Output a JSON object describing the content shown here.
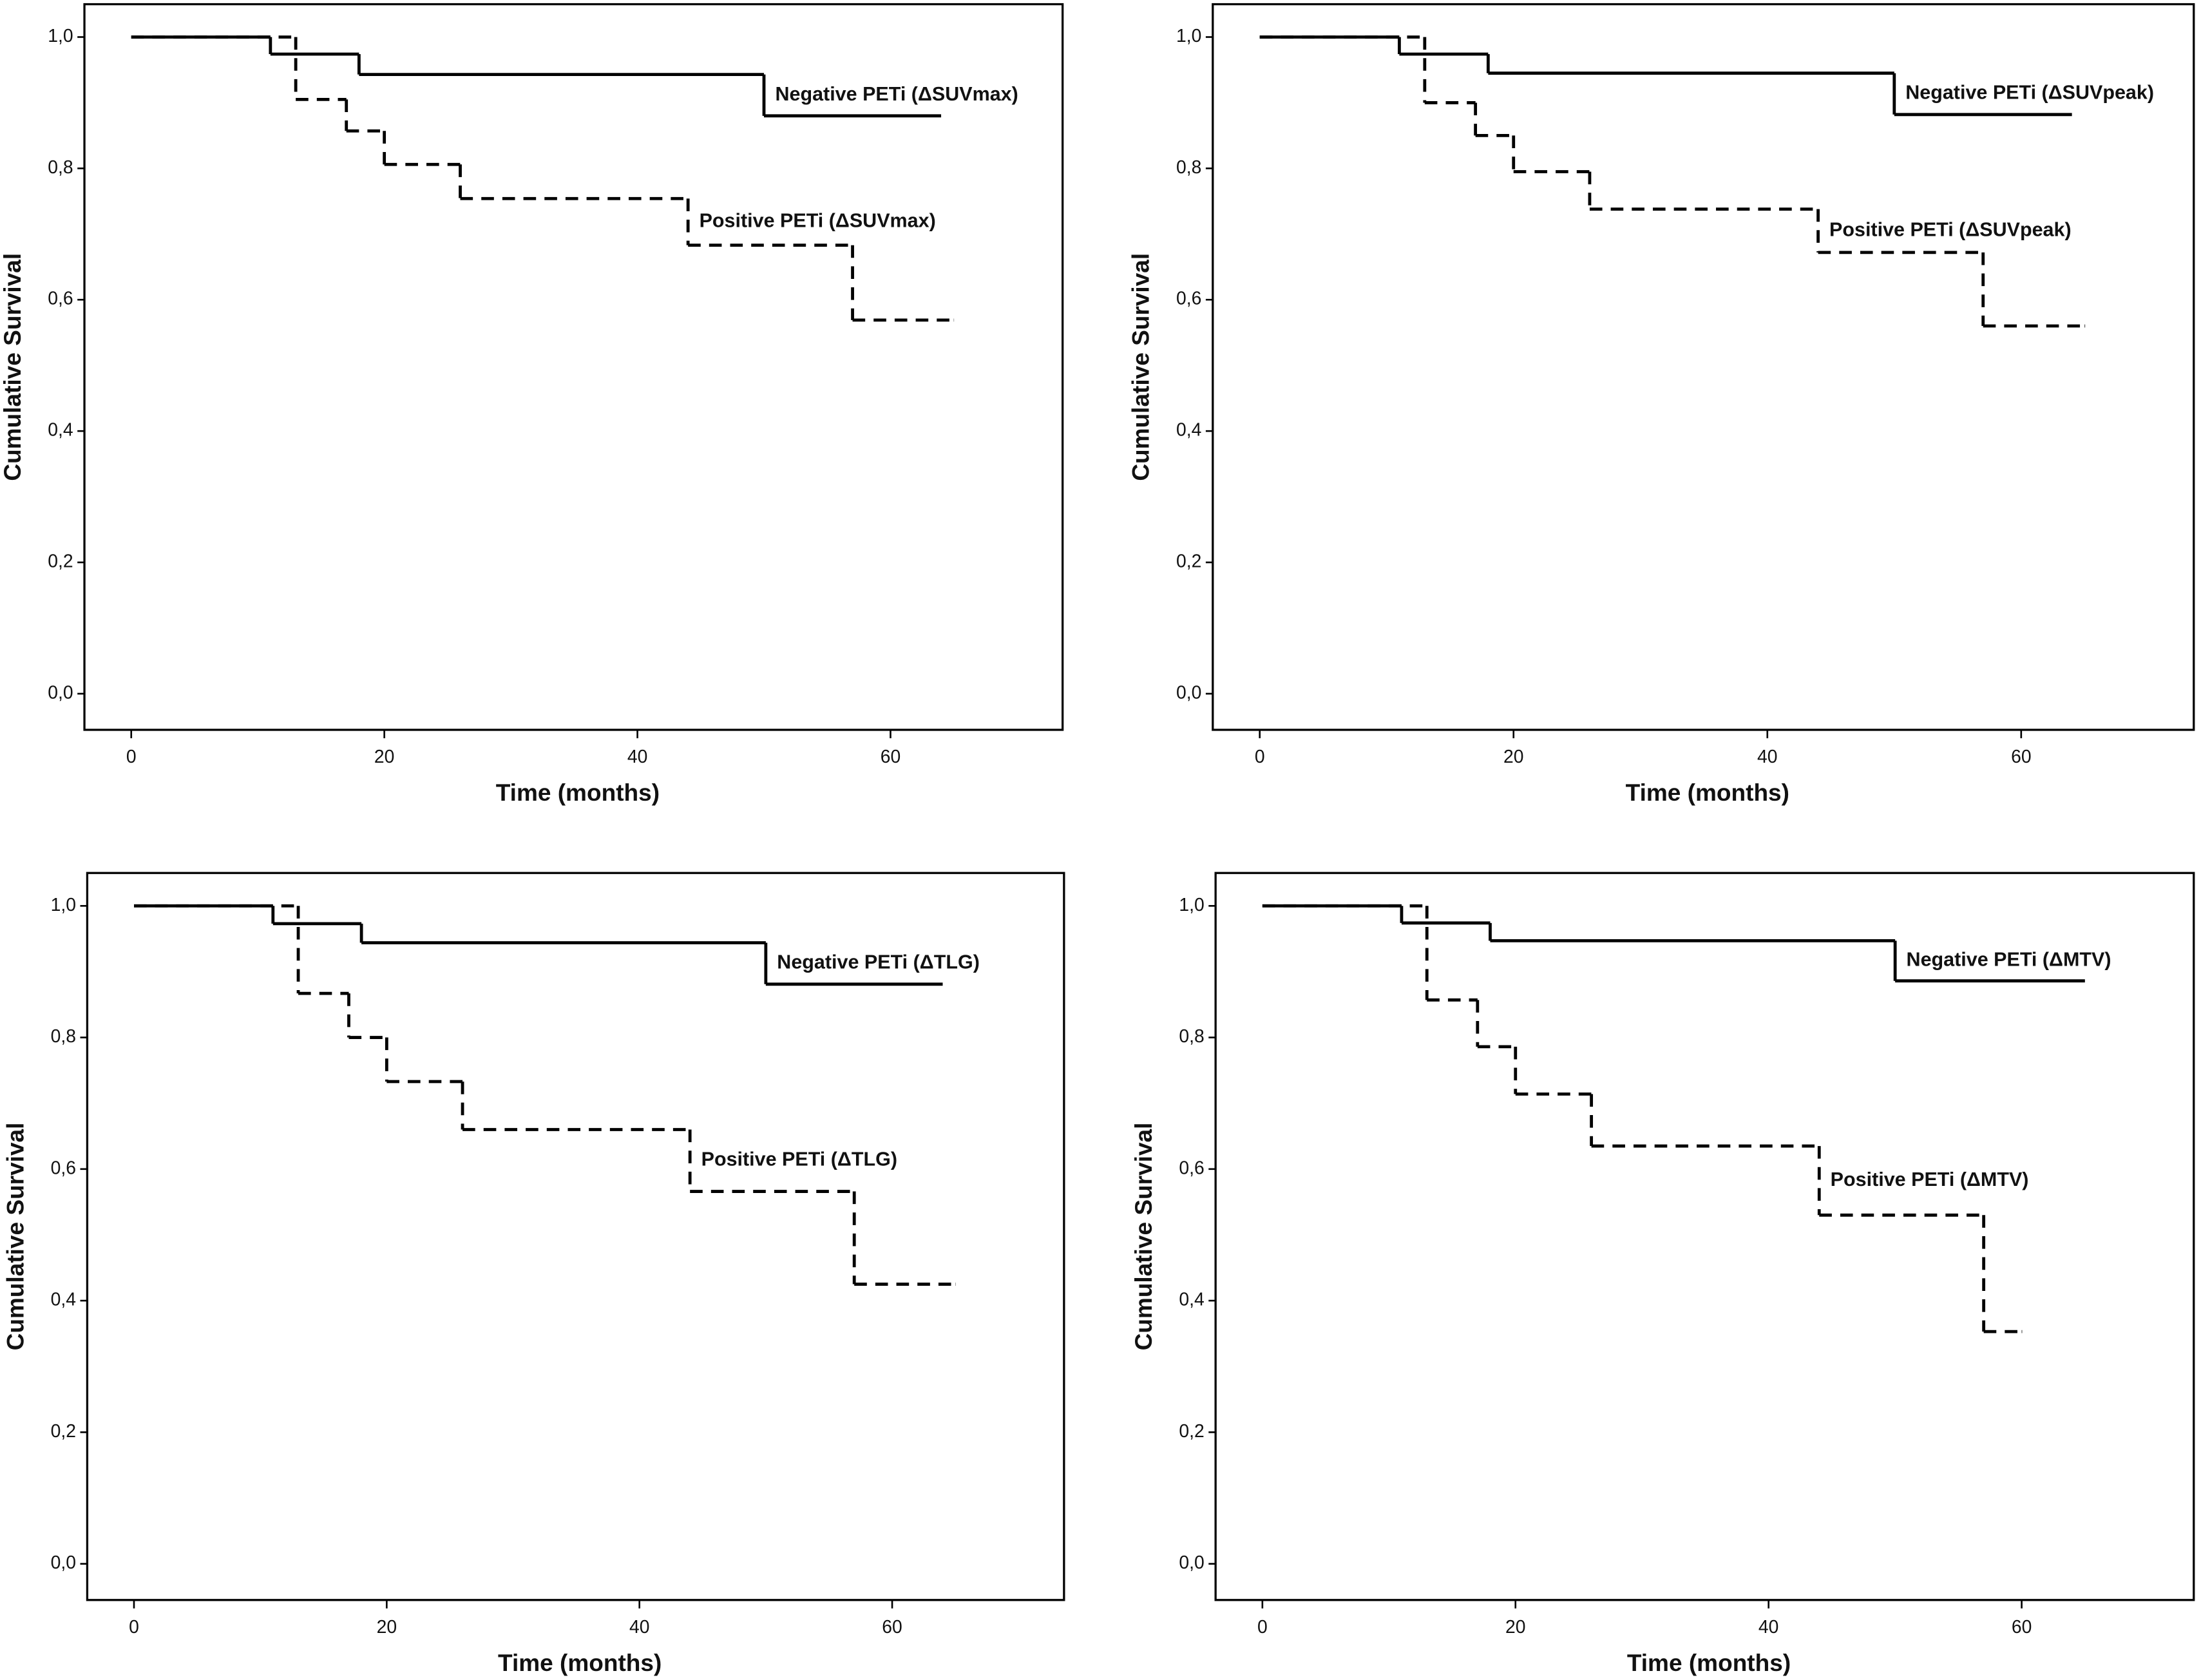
{
  "chart_data": [
    {
      "type": "step",
      "xlabel": "Time (months)",
      "ylabel": "Cumulative Survival",
      "xlim": [
        -3.7,
        73.6
      ],
      "ylim": [
        -0.055,
        1.05
      ],
      "xticks": [
        0,
        20,
        40,
        60
      ],
      "yticks": [
        {
          "value": 0,
          "label": "0,0"
        },
        {
          "value": 0.2,
          "label": "0,2"
        },
        {
          "value": 0.4,
          "label": "0,4"
        },
        {
          "value": 0.6,
          "label": "0,6"
        },
        {
          "value": 0.8,
          "label": "0,8"
        },
        {
          "value": 1,
          "label": "1,0"
        }
      ],
      "series": [
        {
          "name": "Negative PETi (ΔSUVmax)",
          "color": "#000000",
          "dashed": false,
          "x": [
            0,
            11,
            18,
            50,
            64
          ],
          "values": [
            1,
            0.974,
            0.943,
            0.88,
            0.88
          ]
        },
        {
          "name": "Positive PETi (ΔSUVmax)",
          "color": "#000000",
          "dashed": true,
          "x": [
            0,
            13,
            17,
            20,
            26,
            44,
            57,
            65
          ],
          "values": [
            1,
            0.905,
            0.857,
            0.806,
            0.754,
            0.683,
            0.569,
            0.569
          ]
        }
      ]
    },
    {
      "type": "step",
      "xlabel": "Time (months)",
      "ylabel": "Cumulative Survival",
      "xlim": [
        -3.7,
        73.6
      ],
      "ylim": [
        -0.055,
        1.05
      ],
      "xticks": [
        0,
        20,
        40,
        60
      ],
      "yticks": [
        {
          "value": 0,
          "label": "0,0"
        },
        {
          "value": 0.2,
          "label": "0,2"
        },
        {
          "value": 0.4,
          "label": "0,4"
        },
        {
          "value": 0.6,
          "label": "0,6"
        },
        {
          "value": 0.8,
          "label": "0,8"
        },
        {
          "value": 1,
          "label": "1,0"
        }
      ],
      "series": [
        {
          "name": "Negative PETi (ΔSUVpeak)",
          "color": "#000000",
          "dashed": false,
          "x": [
            0,
            11,
            18,
            50,
            64
          ],
          "values": [
            1,
            0.974,
            0.945,
            0.882,
            0.882
          ]
        },
        {
          "name": "Positive PETi (ΔSUVpeak)",
          "color": "#000000",
          "dashed": true,
          "x": [
            0,
            13,
            17,
            20,
            26,
            44,
            57,
            65
          ],
          "values": [
            1,
            0.9,
            0.85,
            0.795,
            0.738,
            0.672,
            0.56,
            0.56
          ]
        }
      ]
    },
    {
      "type": "step",
      "xlabel": "Time (months)",
      "ylabel": "Cumulative Survival",
      "xlim": [
        -3.7,
        73.6
      ],
      "ylim": [
        -0.055,
        1.05
      ],
      "xticks": [
        0,
        20,
        40,
        60
      ],
      "yticks": [
        {
          "value": 0,
          "label": "0,0"
        },
        {
          "value": 0.2,
          "label": "0,2"
        },
        {
          "value": 0.4,
          "label": "0,4"
        },
        {
          "value": 0.6,
          "label": "0,6"
        },
        {
          "value": 0.8,
          "label": "0,8"
        },
        {
          "value": 1,
          "label": "1,0"
        }
      ],
      "series": [
        {
          "name": "Negative PETi (ΔTLG)",
          "color": "#000000",
          "dashed": false,
          "x": [
            0,
            11,
            18,
            50,
            64
          ],
          "values": [
            1,
            0.973,
            0.944,
            0.881,
            0.881
          ]
        },
        {
          "name": "Positive PETi (ΔTLG)",
          "color": "#000000",
          "dashed": true,
          "x": [
            0,
            13,
            17,
            20,
            26,
            44,
            57,
            65
          ],
          "values": [
            1,
            0.867,
            0.8,
            0.733,
            0.66,
            0.566,
            0.425,
            0.425
          ]
        }
      ]
    },
    {
      "type": "step",
      "xlabel": "Time (months)",
      "ylabel": "Cumulative Survival",
      "xlim": [
        -3.7,
        73.6
      ],
      "ylim": [
        -0.055,
        1.05
      ],
      "xticks": [
        0,
        20,
        40,
        60
      ],
      "yticks": [
        {
          "value": 0,
          "label": "0,0"
        },
        {
          "value": 0.2,
          "label": "0,2"
        },
        {
          "value": 0.4,
          "label": "0,4"
        },
        {
          "value": 0.6,
          "label": "0,6"
        },
        {
          "value": 0.8,
          "label": "0,8"
        },
        {
          "value": 1,
          "label": "1,0"
        }
      ],
      "series": [
        {
          "name": "Negative PETi (ΔMTV)",
          "color": "#000000",
          "dashed": false,
          "x": [
            0,
            11,
            18,
            50,
            65
          ],
          "values": [
            1,
            0.974,
            0.947,
            0.886,
            0.886
          ]
        },
        {
          "name": "Positive PETi (ΔMTV)",
          "color": "#000000",
          "dashed": true,
          "x": [
            0,
            13,
            17,
            20,
            26,
            44,
            57,
            60
          ],
          "values": [
            1,
            0.857,
            0.786,
            0.714,
            0.635,
            0.53,
            0.353,
            0.353
          ]
        }
      ]
    }
  ]
}
